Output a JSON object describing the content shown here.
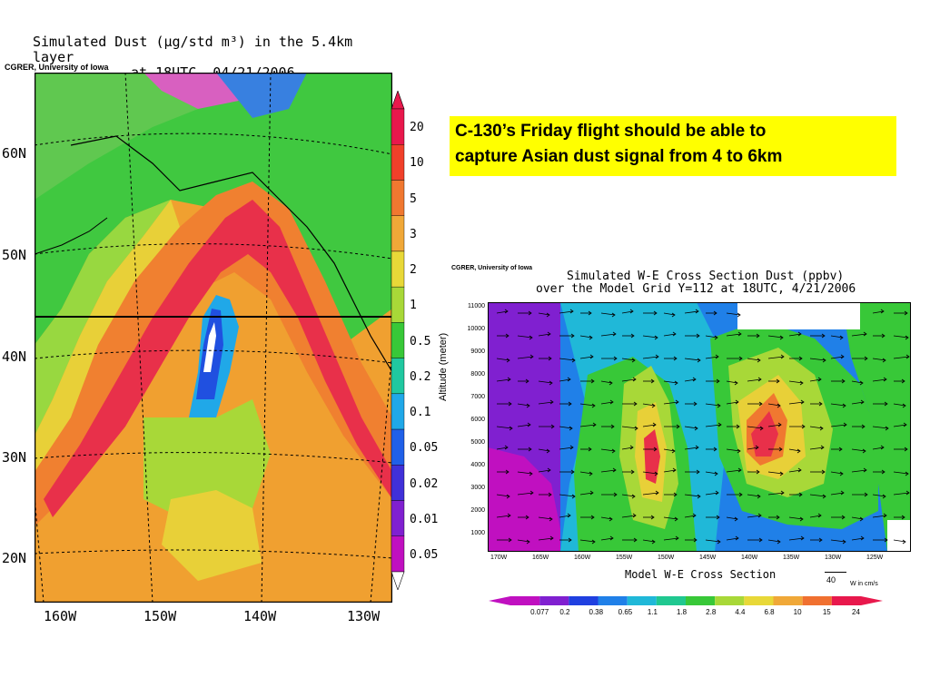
{
  "map": {
    "title_line1": "Simulated Dust (μg/std m³) in the 5.4km layer",
    "title_line2": "at 18UTC, 04/21/2006",
    "credit": "CGRER, University of Iowa",
    "lat_labels": [
      "60N",
      "50N",
      "40N",
      "30N",
      "20N"
    ],
    "lon_labels": [
      "160W",
      "150W",
      "140W",
      "130W"
    ],
    "colorbar_labels": [
      "20",
      "10",
      "5",
      "3",
      "2",
      "1",
      "0.5",
      "0.2",
      "0.1",
      "0.05",
      "0.02",
      "0.01",
      "0.05"
    ],
    "colorbar_colors": [
      "#e8184c",
      "#f0402a",
      "#f07830",
      "#f0a838",
      "#e8d838",
      "#a8d838",
      "#38c838",
      "#20c8a0",
      "#20a8e8",
      "#2060e8",
      "#4030d8",
      "#8020d0",
      "#c010c0"
    ]
  },
  "callout": {
    "line1": "C-130’s Friday flight should be able to",
    "line2": "capture Asian dust signal from 4 to 6km"
  },
  "cross_section": {
    "credit": "CGRER, University of Iowa",
    "title_line1": "Simulated W-E Cross Section Dust (ppbv)",
    "title_line2": "over the Model Grid Y=112 at 18UTC, 4/21/2006",
    "ylabel": "Altitude (meter)",
    "xlabel": "Model W-E Cross Section",
    "altitude_ticks": [
      "11000",
      "10000",
      "9000",
      "8000",
      "7000",
      "6000",
      "5000",
      "4000",
      "3000",
      "2000",
      "1000"
    ],
    "lon_ticks": [
      "170W",
      "165W",
      "160W",
      "155W",
      "150W",
      "145W",
      "140W",
      "135W",
      "130W",
      "125W"
    ],
    "vector_ref_value": "40",
    "vector_ref_units": "W in cm/s",
    "colorbar_labels": [
      "0.077",
      "0.2",
      "0.38",
      "0.65",
      "1.1",
      "1.8",
      "2.8",
      "4.4",
      "6.8",
      "10",
      "15",
      "24"
    ],
    "colorbar_colors": [
      "#c010c0",
      "#8020d0",
      "#2040e0",
      "#2080e8",
      "#20b8d8",
      "#20c890",
      "#38c838",
      "#a8d838",
      "#e8d838",
      "#f0a838",
      "#f07030",
      "#e8184c"
    ]
  }
}
